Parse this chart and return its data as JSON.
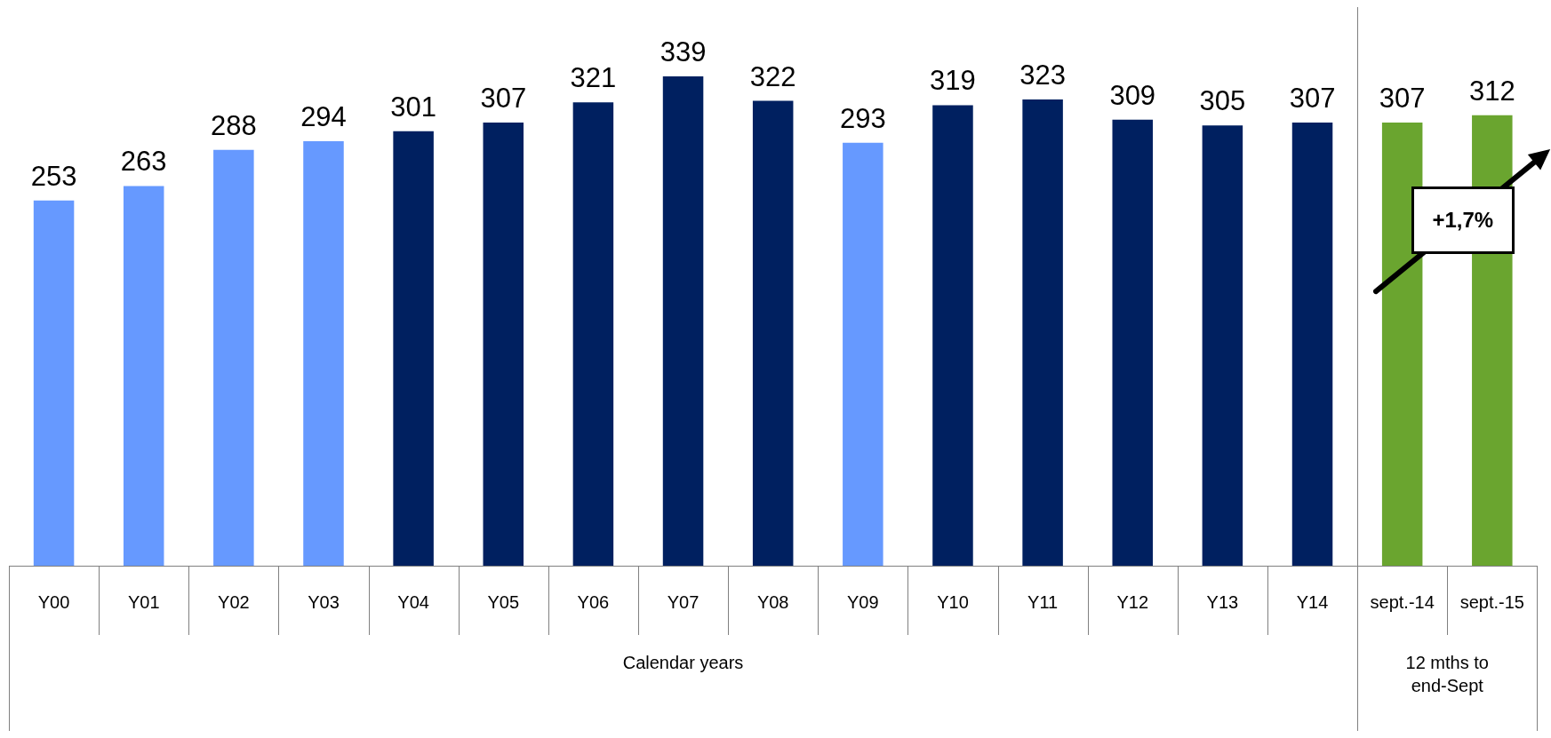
{
  "chart_data": {
    "type": "bar",
    "categories": [
      "Y00",
      "Y01",
      "Y02",
      "Y03",
      "Y04",
      "Y05",
      "Y06",
      "Y07",
      "Y08",
      "Y09",
      "Y10",
      "Y11",
      "Y12",
      "Y13",
      "Y14",
      "sept.-14",
      "sept.-15"
    ],
    "values": [
      253,
      263,
      288,
      294,
      301,
      307,
      321,
      339,
      322,
      293,
      319,
      323,
      309,
      305,
      307,
      307,
      312
    ],
    "colors": [
      "#6699ff",
      "#6699ff",
      "#6699ff",
      "#6699ff",
      "#002060",
      "#002060",
      "#002060",
      "#002060",
      "#002060",
      "#6699ff",
      "#002060",
      "#002060",
      "#002060",
      "#002060",
      "#002060",
      "#6aa52f",
      "#6aa52f"
    ],
    "data_labels": true,
    "legend": false,
    "annotations": [
      "Calendar years",
      "12 mths to end-Sept",
      "+1,7%"
    ]
  }
}
